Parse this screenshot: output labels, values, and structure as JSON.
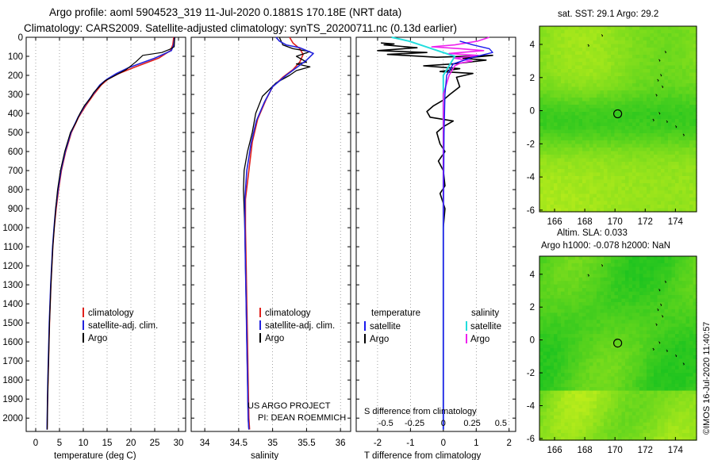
{
  "title_line1": "Argo profile: aoml 5904523_319 11-Jul-2020 0.1881S 170.18E (NRT data)",
  "title_line2": "Climatology: CARS2009. Satellite-adjusted climatology: synTS_20200711.nc (0.13d earlier)",
  "colors": {
    "climatology": "#e0201c",
    "satellite_adj": "#2222dd",
    "argo": "#000000",
    "sat_temp": "#1a1aee",
    "sat_sal": "#22dddd",
    "argo_sal": "#ee22ee",
    "map_low": "#1fc41f",
    "map_high": "#c8f01a"
  },
  "depth_axis": {
    "label": "",
    "ticks": [
      "0",
      "100",
      "200",
      "300",
      "400",
      "500",
      "600",
      "700",
      "800",
      "900",
      "1000",
      "1100",
      "1200",
      "1300",
      "1400",
      "1500",
      "1600",
      "1700",
      "1800",
      "1900",
      "2000"
    ],
    "ylim": [
      0,
      2070
    ]
  },
  "chart_data": [
    {
      "type": "line",
      "name": "temperature-profile",
      "xlabel": "temperature (deg C)",
      "xlim": [
        -2,
        31.5
      ],
      "xticks": [
        "0",
        "5",
        "10",
        "15",
        "20",
        "25",
        "30"
      ],
      "legend": [
        "climatology",
        "satellite-adj. clim.",
        "Argo"
      ],
      "series": [
        {
          "name": "climatology",
          "points": [
            [
              29.0,
              0
            ],
            [
              28.8,
              40
            ],
            [
              28.3,
              70
            ],
            [
              25.8,
              110
            ],
            [
              20.5,
              160
            ],
            [
              17.5,
              190
            ],
            [
              15.2,
              220
            ],
            [
              13.8,
              250
            ],
            [
              12.2,
              300
            ],
            [
              10.5,
              360
            ],
            [
              9.0,
              420
            ],
            [
              7.5,
              500
            ],
            [
              6.3,
              600
            ],
            [
              5.4,
              700
            ],
            [
              4.8,
              800
            ],
            [
              4.3,
              900
            ],
            [
              3.9,
              1000
            ],
            [
              3.6,
              1100
            ],
            [
              3.4,
              1200
            ],
            [
              3.2,
              1300
            ],
            [
              3.05,
              1400
            ],
            [
              2.9,
              1500
            ],
            [
              2.8,
              1600
            ],
            [
              2.7,
              1700
            ],
            [
              2.6,
              1800
            ],
            [
              2.5,
              1900
            ],
            [
              2.45,
              2000
            ],
            [
              2.4,
              2060
            ]
          ]
        },
        {
          "name": "satellite-adj. clim.",
          "points": [
            [
              29.2,
              0
            ],
            [
              29.0,
              40
            ],
            [
              28.5,
              70
            ],
            [
              25.0,
              110
            ],
            [
              19.5,
              160
            ],
            [
              17.0,
              190
            ],
            [
              15.0,
              220
            ],
            [
              13.5,
              250
            ],
            [
              12.0,
              300
            ],
            [
              10.3,
              360
            ],
            [
              8.9,
              420
            ],
            [
              7.4,
              500
            ],
            [
              6.2,
              600
            ],
            [
              5.3,
              700
            ],
            [
              4.7,
              800
            ],
            [
              4.2,
              900
            ],
            [
              3.85,
              1000
            ],
            [
              3.55,
              1100
            ],
            [
              3.35,
              1200
            ],
            [
              3.15,
              1300
            ],
            [
              3.0,
              1400
            ],
            [
              2.85,
              1500
            ],
            [
              2.75,
              1600
            ],
            [
              2.65,
              1700
            ],
            [
              2.55,
              1800
            ],
            [
              2.48,
              1900
            ],
            [
              2.42,
              2000
            ],
            [
              2.38,
              2060
            ]
          ]
        },
        {
          "name": "Argo",
          "points": [
            [
              29.2,
              0
            ],
            [
              29.1,
              50
            ],
            [
              28.0,
              65
            ],
            [
              26.5,
              80
            ],
            [
              22.5,
              95
            ],
            [
              21.0,
              130
            ],
            [
              19.0,
              170
            ],
            [
              16.0,
              210
            ],
            [
              14.5,
              230
            ],
            [
              13.5,
              255
            ],
            [
              12.2,
              290
            ],
            [
              11.5,
              320
            ],
            [
              10.2,
              360
            ],
            [
              9.3,
              400
            ],
            [
              8.4,
              450
            ],
            [
              7.3,
              500
            ],
            [
              6.1,
              600
            ],
            [
              5.2,
              700
            ],
            [
              4.6,
              800
            ],
            [
              4.2,
              900
            ],
            [
              3.9,
              1000
            ],
            [
              3.6,
              1100
            ],
            [
              3.4,
              1200
            ],
            [
              3.2,
              1300
            ],
            [
              3.05,
              1400
            ],
            [
              2.9,
              1500
            ],
            [
              2.8,
              1600
            ],
            [
              2.7,
              1700
            ],
            [
              2.6,
              1800
            ],
            [
              2.5,
              1900
            ],
            [
              2.45,
              2000
            ],
            [
              2.42,
              2060
            ]
          ]
        }
      ]
    },
    {
      "type": "line",
      "name": "salinity-profile",
      "xlabel": "salinity",
      "xlim": [
        33.8,
        36.15
      ],
      "xticks": [
        "34",
        "34.5",
        "35",
        "35.5",
        "36"
      ],
      "legend": [
        "climatology",
        "satellite-adj. clim.",
        "Argo"
      ],
      "annotation": [
        "US ARGO PROJECT",
        "PI: DEAN ROEMMICH"
      ],
      "series": [
        {
          "name": "climatology",
          "points": [
            [
              35.25,
              0
            ],
            [
              35.3,
              30
            ],
            [
              35.4,
              60
            ],
            [
              35.45,
              90
            ],
            [
              35.4,
              130
            ],
            [
              35.3,
              170
            ],
            [
              35.15,
              210
            ],
            [
              35.0,
              260
            ],
            [
              34.9,
              330
            ],
            [
              34.78,
              430
            ],
            [
              34.7,
              550
            ],
            [
              34.65,
              700
            ],
            [
              34.6,
              850
            ],
            [
              34.6,
              1000
            ],
            [
              34.61,
              1200
            ],
            [
              34.62,
              1400
            ],
            [
              34.63,
              1600
            ],
            [
              34.64,
              1800
            ],
            [
              34.65,
              2000
            ],
            [
              34.66,
              2060
            ]
          ]
        },
        {
          "name": "satellite-adj. clim.",
          "points": [
            [
              35.05,
              0
            ],
            [
              35.1,
              20
            ],
            [
              35.2,
              40
            ],
            [
              35.4,
              55
            ],
            [
              35.6,
              85
            ],
            [
              35.5,
              120
            ],
            [
              35.35,
              160
            ],
            [
              35.2,
              200
            ],
            [
              35.0,
              260
            ],
            [
              34.88,
              340
            ],
            [
              34.76,
              440
            ],
            [
              34.68,
              560
            ],
            [
              34.62,
              700
            ],
            [
              34.59,
              850
            ],
            [
              34.59,
              1000
            ],
            [
              34.6,
              1200
            ],
            [
              34.61,
              1400
            ],
            [
              34.62,
              1600
            ],
            [
              34.63,
              1800
            ],
            [
              34.64,
              2000
            ],
            [
              34.65,
              2060
            ]
          ]
        },
        {
          "name": "Argo",
          "points": [
            [
              35.1,
              0
            ],
            [
              35.15,
              40
            ],
            [
              35.3,
              60
            ],
            [
              35.55,
              75
            ],
            [
              35.35,
              100
            ],
            [
              35.5,
              130
            ],
            [
              35.35,
              140
            ],
            [
              35.55,
              155
            ],
            [
              35.35,
              175
            ],
            [
              35.25,
              200
            ],
            [
              35.05,
              240
            ],
            [
              34.85,
              310
            ],
            [
              34.75,
              400
            ],
            [
              34.7,
              500
            ],
            [
              34.63,
              600
            ],
            [
              34.58,
              700
            ],
            [
              34.57,
              800
            ],
            [
              34.58,
              900
            ],
            [
              34.59,
              1000
            ],
            [
              34.6,
              1200
            ],
            [
              34.61,
              1400
            ],
            [
              34.62,
              1600
            ],
            [
              34.63,
              1800
            ],
            [
              34.64,
              2000
            ],
            [
              34.65,
              2060
            ]
          ]
        }
      ]
    },
    {
      "type": "line",
      "name": "difference-profile",
      "xlabel": "T difference from climatology",
      "xlim": [
        -2.65,
        2.2
      ],
      "xticks": [
        "-2",
        "-1",
        "0",
        "1",
        "2"
      ],
      "s_axis_label": "S difference from climatology",
      "s_ticks": [
        "-0.5",
        "-0.25",
        "0",
        "0.25",
        "0.5"
      ],
      "legend_groups": {
        "temperature": [
          "satellite",
          "Argo"
        ],
        "salinity": [
          "satellite",
          "Argo"
        ]
      },
      "series": [
        {
          "name": "T satellite",
          "points": [
            [
              0.5,
              20
            ],
            [
              0.9,
              40
            ],
            [
              1.4,
              60
            ],
            [
              1.5,
              80
            ],
            [
              0.9,
              105
            ],
            [
              0.3,
              140
            ],
            [
              0.1,
              200
            ],
            [
              0.05,
              300
            ],
            [
              0.02,
              500
            ],
            [
              0.01,
              800
            ],
            [
              0.0,
              1000
            ],
            [
              0.0,
              2060
            ]
          ]
        },
        {
          "name": "T Argo",
          "points": [
            [
              -1.9,
              30
            ],
            [
              -1.5,
              35
            ],
            [
              -1.8,
              40
            ],
            [
              -0.8,
              55
            ],
            [
              -2.0,
              70
            ],
            [
              -0.5,
              80
            ],
            [
              -1.7,
              90
            ],
            [
              -0.2,
              105
            ],
            [
              1.5,
              95
            ],
            [
              0.6,
              110
            ],
            [
              1.3,
              120
            ],
            [
              0.3,
              140
            ],
            [
              -0.6,
              150
            ],
            [
              0.5,
              165
            ],
            [
              -0.1,
              180
            ],
            [
              0.9,
              190
            ],
            [
              0.4,
              210
            ],
            [
              0.5,
              260
            ],
            [
              0.2,
              300
            ],
            [
              0.0,
              330
            ],
            [
              -0.3,
              360
            ],
            [
              -0.5,
              390
            ],
            [
              -0.4,
              420
            ],
            [
              0.3,
              440
            ],
            [
              0.0,
              470
            ],
            [
              -0.2,
              500
            ],
            [
              -0.1,
              560
            ],
            [
              0.05,
              600
            ],
            [
              -0.15,
              650
            ],
            [
              0.0,
              700
            ],
            [
              0.05,
              780
            ],
            [
              -0.1,
              820
            ],
            [
              0.05,
              900
            ],
            [
              0.0,
              1000
            ],
            [
              0.0,
              2060
            ]
          ]
        },
        {
          "name": "S satellite",
          "points": [
            [
              -0.45,
              0
            ],
            [
              -0.3,
              20
            ],
            [
              -0.2,
              40
            ],
            [
              -0.1,
              60
            ],
            [
              0.1,
              100
            ],
            [
              0.05,
              150
            ],
            [
              0.0,
              200
            ],
            [
              0.0,
              400
            ],
            [
              0.0,
              1000
            ],
            [
              0.0,
              2060
            ]
          ]
        },
        {
          "name": "S Argo",
          "points": [
            [
              0.4,
              0
            ],
            [
              0.3,
              20
            ],
            [
              0.1,
              40
            ],
            [
              -0.1,
              50
            ],
            [
              0.15,
              60
            ],
            [
              0.35,
              70
            ],
            [
              0.05,
              85
            ],
            [
              0.3,
              95
            ],
            [
              0.1,
              110
            ],
            [
              0.25,
              125
            ],
            [
              0.15,
              135
            ],
            [
              0.1,
              150
            ],
            [
              0.05,
              200
            ],
            [
              0.0,
              300
            ],
            [
              0.0,
              500
            ],
            [
              0.0,
              1000
            ],
            [
              0.0,
              2060
            ]
          ]
        }
      ]
    },
    {
      "type": "heatmap",
      "name": "sst-map",
      "title": "sat. SST: 29.1 Argo: 29.2",
      "xlim": [
        165,
        175.4
      ],
      "ylim": [
        -6.1,
        5.1
      ],
      "xticks": [
        "166",
        "168",
        "170",
        "172",
        "174"
      ],
      "yticks": [
        "4",
        "2",
        "0",
        "-2",
        "-4",
        "-6"
      ],
      "marker": {
        "lon": 170.18,
        "lat": -0.19
      }
    },
    {
      "type": "heatmap",
      "name": "sla-map",
      "title": "Altim. SLA: 0.033",
      "subtitle": "Argo h1000: -0.078 h2000: NaN",
      "xlim": [
        165,
        175.4
      ],
      "ylim": [
        -6.1,
        5.1
      ],
      "xticks": [
        "166",
        "168",
        "170",
        "172",
        "174"
      ],
      "yticks": [
        "4",
        "2",
        "0",
        "-2",
        "-4",
        "-6"
      ],
      "marker": {
        "lon": 170.18,
        "lat": -0.19
      }
    }
  ],
  "credit": "©IMOS 16-Jul-2020 11:40:57"
}
